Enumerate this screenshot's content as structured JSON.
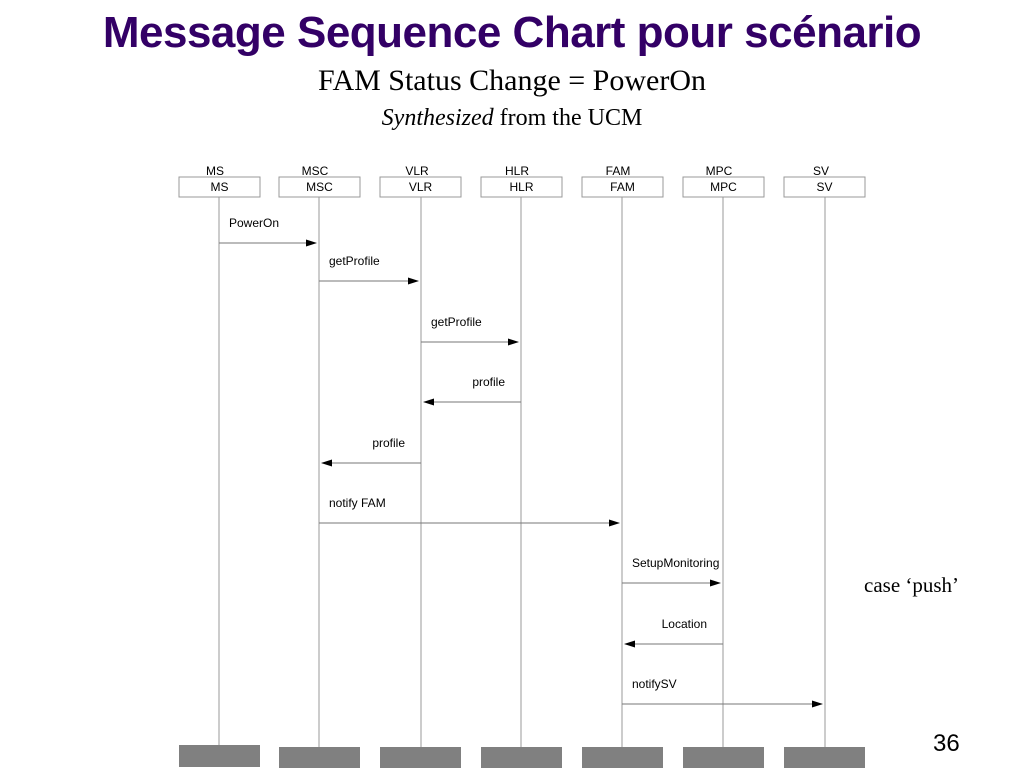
{
  "slide": {
    "title": "Message Sequence Chart pour scénario",
    "subtitle": "FAM Status Change = PowerOn",
    "synthesized_em": "Synthesized",
    "synthesized_rest": " from the UCM",
    "annotation": "case ‘push’",
    "page_number": "36"
  },
  "diagram": {
    "entities": [
      "MS",
      "MSC",
      "VLR",
      "HLR",
      "FAM",
      "MPC",
      "SV"
    ],
    "messages": [
      {
        "label": "PowerOn",
        "from": 0,
        "to": 1
      },
      {
        "label": "getProfile",
        "from": 1,
        "to": 2
      },
      {
        "label": "getProfile",
        "from": 2,
        "to": 3
      },
      {
        "label": "profile",
        "from": 3,
        "to": 2
      },
      {
        "label": "profile",
        "from": 2,
        "to": 1
      },
      {
        "label": "notify FAM",
        "from": 1,
        "to": 4
      },
      {
        "label": "SetupMonitoring",
        "from": 4,
        "to": 5
      },
      {
        "label": "Location",
        "from": 5,
        "to": 4
      },
      {
        "label": "notifySV",
        "from": 4,
        "to": 6
      }
    ]
  }
}
